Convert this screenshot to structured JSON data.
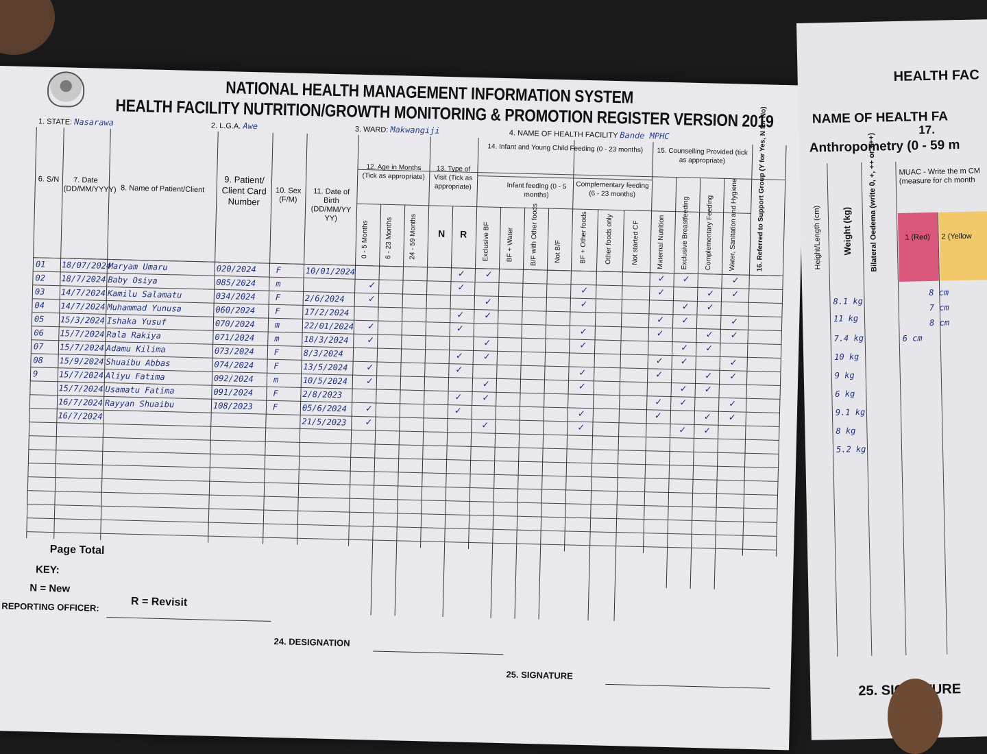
{
  "header": {
    "title": "NATIONAL HEALTH MANAGEMENT INFORMATION SYSTEM",
    "subtitle": "HEALTH FACILITY NUTRITION/GROWTH MONITORING & PROMOTION REGISTER VERSION 2019",
    "state_label": "1. STATE:",
    "state_value": "Nasarawa",
    "lga_label": "2. L.G.A.",
    "lga_value": "Awe",
    "ward_label": "3. WARD:",
    "ward_value": "Makwangiji",
    "facility_label": "4. NAME OF HEALTH FACILITY",
    "facility_value": "Bande MPHC"
  },
  "columns": {
    "sn": "6. S/N",
    "date": "7. Date (DD/MM/YYYY)",
    "name": "8. Name of Patient/Client",
    "card": "9. Patient/ Client Card Number",
    "sex": "10. Sex (F/M)",
    "dob": "11. Date of Birth (DD/MM/YY YY)",
    "age_group": "12. Age in Months (Tick as appropriate)",
    "age_0_5": "0 - 5 Months",
    "age_6_23": "6 - 23 Months",
    "age_24_59": "24 - 59 Months",
    "visit_group": "13. Type of Visit (Tick as appropriate)",
    "visit_n": "N",
    "visit_r": "R",
    "iycf_group": "14. Infant and Young Child Feeding (0 - 23 months)",
    "infant_feeding": "Infant feeding (0 - 5 months)",
    "exclusive_bf": "Exclusive BF",
    "bf_water": "BF + Water",
    "bf_other": "B/F with Other foods",
    "not_bf": "Not B/F",
    "complementary": "Complementary feeding (6 - 23 months)",
    "bf_other_foods": "BF + Other foods",
    "other_only": "Other foods only",
    "not_started": "Not started CF",
    "counsel_group": "15. Counselling Provided (tick as appropriate)",
    "maternal": "Maternal Nutrition",
    "excl_bf": "Exclusive Breastfeeding",
    "comp_feeding": "Complementary Feeding",
    "wash": "Water, Sanitation and Hygiene",
    "referred": "16. Referred to Support Group (Y for Yes, N for No)"
  },
  "rows": [
    {
      "sn": "01",
      "date": "18/07/2024",
      "name": "Maryam Umaru",
      "card": "020/2024",
      "sex": "F",
      "dob": "10/01/2024"
    },
    {
      "sn": "02",
      "date": "18/7/2024",
      "name": "Baby Osiya",
      "card": "085/2024",
      "sex": "m",
      "dob": ""
    },
    {
      "sn": "03",
      "date": "14/7/2024",
      "name": "Kamilu Salamatu",
      "card": "034/2024",
      "sex": "F",
      "dob": "2/6/2024"
    },
    {
      "sn": "04",
      "date": "14/7/2024",
      "name": "Muhammad Yunusa",
      "card": "060/2024",
      "sex": "F",
      "dob": "17/2/2024"
    },
    {
      "sn": "05",
      "date": "15/3/2024",
      "name": "Ishaka Yusuf",
      "card": "070/2024",
      "sex": "m",
      "dob": "22/01/2024"
    },
    {
      "sn": "06",
      "date": "15/7/2024",
      "name": "Rala Rakiya",
      "card": "071/2024",
      "sex": "m",
      "dob": "18/3/2024"
    },
    {
      "sn": "07",
      "date": "15/7/2024",
      "name": "Adamu Kilima",
      "card": "073/2024",
      "sex": "F",
      "dob": "8/3/2024"
    },
    {
      "sn": "08",
      "date": "15/9/2024",
      "name": "Shuaibu Abbas",
      "card": "074/2024",
      "sex": "F",
      "dob": "13/5/2024"
    },
    {
      "sn": "9",
      "date": "15/7/2024",
      "name": "Aliyu Fatima",
      "card": "092/2024",
      "sex": "m",
      "dob": "10/5/2024"
    },
    {
      "sn": "",
      "date": "15/7/2024",
      "name": "Usamatu Fatima",
      "card": "091/2024",
      "sex": "F",
      "dob": "2/8/2023"
    },
    {
      "sn": "",
      "date": "16/7/2024",
      "name": "Rayyan Shuaibu",
      "card": "108/2023",
      "sex": "F",
      "dob": "05/6/2024"
    },
    {
      "sn": "",
      "date": "16/7/2024",
      "name": "",
      "card": "",
      "sex": "",
      "dob": "21/5/2023"
    }
  ],
  "footer": {
    "page_total": "Page Total",
    "key": "KEY:",
    "key_new": "N = New",
    "key_revisit": "R = Revisit",
    "officer": "OF REPORTING OFFICER:",
    "designation": "24. DESIGNATION",
    "signature": "25. SIGNATURE"
  },
  "right_page": {
    "title": "HEALTH FAC",
    "name_label": "NAME OF HEALTH FA",
    "section_num": "17.",
    "section_title": "Anthropometry (0 - 59 m",
    "height_label": "Height/Length (cm)",
    "weight_label": "Weight (kg)",
    "oedema_label": "Bilateral Oedema (write 0, +, ++ or +++)",
    "muac_label": "MUAC - Write the m CM (measure for ch month",
    "red_label": "1 (Red)",
    "yellow_label": "2 (Yellow",
    "weights": [
      "8.1 kg",
      "11 kg",
      "7.4 kg",
      "10 kg",
      "9 kg",
      "6 kg",
      "9.1 kg",
      "8 kg",
      "5.2 kg"
    ],
    "muac_values": [
      "8 cm",
      "7 cm",
      "8 cm",
      "6 cm"
    ],
    "signature": "25. SIGNATURE",
    "red_color": "#d9577a",
    "yellow_color": "#f2c96a"
  }
}
